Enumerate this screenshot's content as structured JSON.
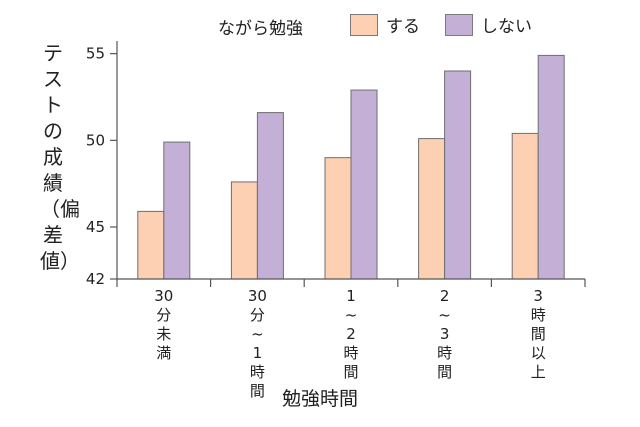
{
  "chart_data": {
    "type": "bar",
    "legend_title": "ながら勉強",
    "categories": [
      "30分未満",
      "30分~1時間",
      "1~2時間",
      "2~3時間",
      "3時間以上"
    ],
    "series": [
      {
        "name": "する",
        "values": [
          45.9,
          47.6,
          49.0,
          50.1,
          50.4
        ],
        "color": "#fdd0b4"
      },
      {
        "name": "しない",
        "values": [
          49.9,
          51.6,
          52.9,
          54.0,
          54.9
        ],
        "color": "#c4b0d6"
      }
    ],
    "xlabel": "勉強時間",
    "ylabel": "テストの成績（偏差値）",
    "yticks": [
      42,
      45,
      50,
      55
    ],
    "ylim": [
      42,
      55.5
    ],
    "grid": false,
    "legend_position": "top"
  }
}
